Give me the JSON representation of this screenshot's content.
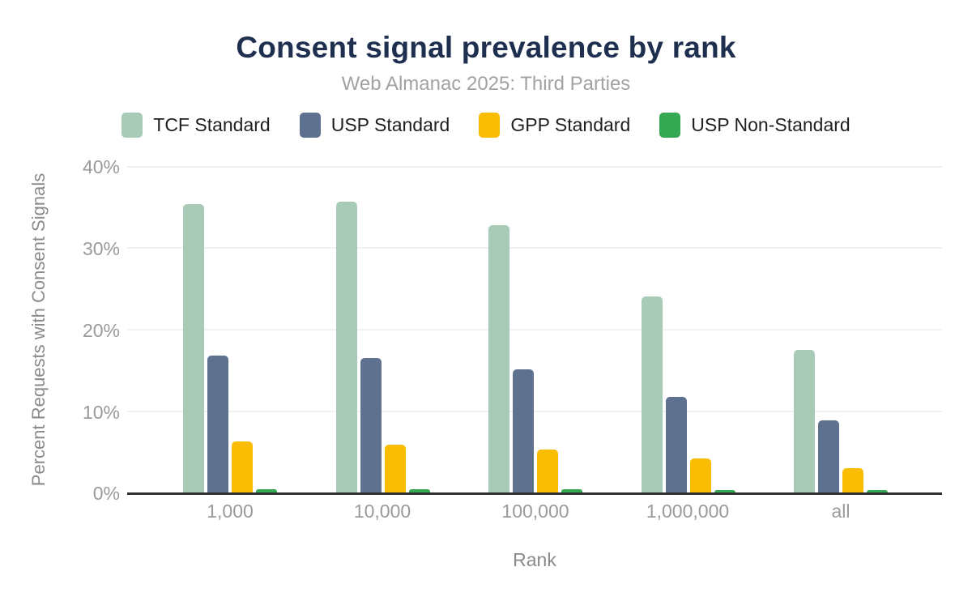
{
  "header": {
    "title": "Consent signal prevalence by rank",
    "subtitle": "Web Almanac 2025: Third Parties"
  },
  "legend": {
    "items": [
      {
        "label": "TCF Standard",
        "color": "#a8cbb8"
      },
      {
        "label": "USP Standard",
        "color": "#5e7290"
      },
      {
        "label": "GPP Standard",
        "color": "#fbbc04"
      },
      {
        "label": "USP Non-Standard",
        "color": "#34a853"
      }
    ]
  },
  "chart_data": {
    "type": "bar",
    "title": "Consent signal prevalence by rank",
    "subtitle": "Web Almanac 2025: Third Parties",
    "categories": [
      "1,000",
      "10,000",
      "100,000",
      "1,000,000",
      "all"
    ],
    "series": [
      {
        "name": "TCF Standard",
        "color": "#a8cbb8",
        "values": [
          35.3,
          35.6,
          32.8,
          24.0,
          17.5
        ]
      },
      {
        "name": "USP Standard",
        "color": "#5e7290",
        "values": [
          16.8,
          16.5,
          15.1,
          11.7,
          8.8
        ]
      },
      {
        "name": "GPP Standard",
        "color": "#fbbc04",
        "values": [
          6.3,
          5.9,
          5.3,
          4.2,
          3.0
        ]
      },
      {
        "name": "USP Non-Standard",
        "color": "#34a853",
        "values": [
          0.4,
          0.4,
          0.4,
          0.3,
          0.3
        ]
      }
    ],
    "xlabel": "Rank",
    "ylabel": "Percent Requests with Consent Signals",
    "ylim": [
      0,
      40
    ],
    "yticks": [
      "40%",
      "30%",
      "20%",
      "10%",
      "0%"
    ],
    "grid": true,
    "legend_position": "top",
    "units": "%"
  },
  "colors": {
    "title": "#1e2f50",
    "subtitle": "#a2a2a2",
    "tick_labels": "#9a9a9a",
    "axis_titles": "#8a8a8a",
    "gridline": "#f1f1f1",
    "axis_line": "#313131",
    "background": "#ffffff"
  }
}
